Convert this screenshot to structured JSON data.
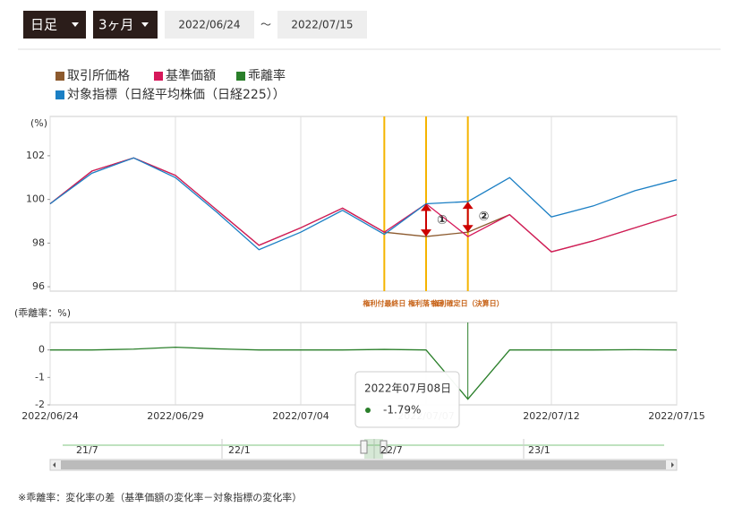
{
  "controls": {
    "interval": "日足",
    "period": "3ヶ月",
    "start": "2022/06/24",
    "separator": "～",
    "end": "2022/07/15"
  },
  "chart_data": [
    {
      "type": "line",
      "y_label": "(%)",
      "ylim": [
        95.8,
        103.8
      ],
      "yticks": [
        96,
        98,
        100,
        102
      ],
      "series": [
        {
          "name": "取引所価格",
          "color": "#8c5a2e",
          "values": [
            99.8,
            101.3,
            101.9,
            101.1,
            99.5,
            97.9,
            98.7,
            99.6,
            98.5,
            98.3,
            98.5,
            99.3,
            97.6,
            98.1,
            98.7,
            99.3
          ]
        },
        {
          "name": "基準価額",
          "color": "#d6185a",
          "values": [
            99.8,
            101.3,
            101.9,
            101.1,
            99.5,
            97.9,
            98.7,
            99.6,
            98.5,
            99.8,
            98.3,
            99.3,
            97.6,
            98.1,
            98.7,
            99.3
          ]
        },
        {
          "name": "対象指標（日経平均株価（日経225））",
          "color": "#1b7fc4",
          "values": [
            99.8,
            101.2,
            101.9,
            101.0,
            99.4,
            97.7,
            98.5,
            99.5,
            98.4,
            99.8,
            99.9,
            101.0,
            99.2,
            99.7,
            100.4,
            100.9
          ]
        }
      ],
      "events": [
        {
          "label": "権利付最終日",
          "index": 8
        },
        {
          "label": "権利落ち日",
          "index": 9
        },
        {
          "label": "権利確定日（決算日）",
          "index": 10
        }
      ],
      "event_color": "#f5b400",
      "markers": [
        "①",
        "②"
      ]
    },
    {
      "type": "line",
      "y_label": "(乖離率：%)",
      "ylim": [
        -2,
        1
      ],
      "yticks": [
        0,
        -1,
        -2
      ],
      "categories": [
        "2022/06/24",
        null,
        null,
        "2022/06/29",
        null,
        null,
        "2022/07/04",
        null,
        null,
        "2022/07/07",
        null,
        null,
        "2022/07/12",
        null,
        null,
        "2022/07/15"
      ],
      "series": [
        {
          "name": "乖離率",
          "color": "#2a7f2a",
          "values": [
            0,
            0,
            0.03,
            0.1,
            0.04,
            0,
            0,
            0,
            0.02,
            0,
            -1.79,
            0,
            0,
            0,
            0.01,
            0
          ]
        }
      ],
      "tooltip": {
        "title": "2022年07月08日",
        "label": "-1.79%"
      }
    }
  ],
  "navigator": {
    "labels": [
      "21/7",
      "22/1",
      "22/7",
      "23/1"
    ]
  },
  "footnote": "※乖離率：変化率の差（基準価額の変化率－対象指標の変化率）"
}
